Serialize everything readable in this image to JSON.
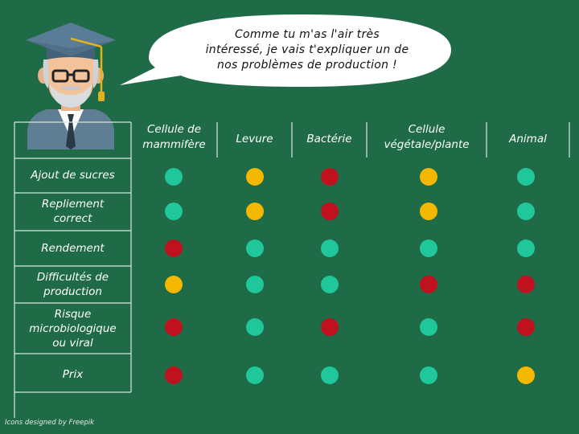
{
  "speech": {
    "line1": "Comme tu m'as l'air très",
    "line2": "intéressé, je vais t'expliquer un de",
    "line3": "nos problèmes de production !"
  },
  "columns": [
    {
      "line1": "Cellule de",
      "line2": "mammifère"
    },
    {
      "line1": "Levure",
      "line2": ""
    },
    {
      "line1": "Bactérie",
      "line2": ""
    },
    {
      "line1": "Cellule",
      "line2": "végétale/plante"
    },
    {
      "line1": "Animal",
      "line2": ""
    }
  ],
  "rows": [
    {
      "label1": "Ajout de sucres",
      "label2": "",
      "label3": "",
      "ratings": [
        "green",
        "yellow",
        "red",
        "yellow",
        "green"
      ]
    },
    {
      "label1": "Repliement",
      "label2": "correct",
      "label3": "",
      "ratings": [
        "green",
        "yellow",
        "red",
        "yellow",
        "green"
      ]
    },
    {
      "label1": "Rendement",
      "label2": "",
      "label3": "",
      "ratings": [
        "red",
        "green",
        "green",
        "green",
        "green"
      ]
    },
    {
      "label1": "Difficultés de",
      "label2": "production",
      "label3": "",
      "ratings": [
        "yellow",
        "green",
        "green",
        "red",
        "red"
      ]
    },
    {
      "label1": "Risque",
      "label2": "microbiologique",
      "label3": "ou viral",
      "ratings": [
        "red",
        "green",
        "red",
        "green",
        "red"
      ]
    },
    {
      "label1": "Prix",
      "label2": "",
      "label3": "",
      "ratings": [
        "red",
        "green",
        "green",
        "green",
        "yellow"
      ]
    }
  ],
  "colors": {
    "background": "#1f6b47",
    "green": "#1fc79a",
    "yellow": "#f5b800",
    "red": "#c0111f"
  },
  "avatar_icon": "professor-graduate-icon",
  "credit": "Icons designed by Freepik"
}
